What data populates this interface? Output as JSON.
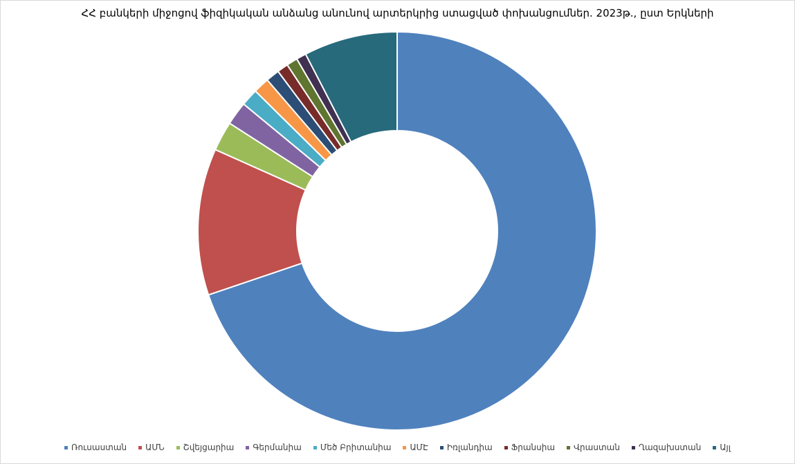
{
  "chart_data": {
    "type": "pie",
    "donut": true,
    "title": "ՀՀ բանկերի միջոցով ֆիզիկական անձանց անունով արտերկրից ստացված փոխանցումներ. 2023թ., ըստ Երկների",
    "legend_position": "bottom",
    "slices": [
      {
        "label": "Ռուսաստան",
        "value": 69.8,
        "color": "#4f81bd"
      },
      {
        "label": "ԱՄՆ",
        "value": 11.9,
        "color": "#c0504d"
      },
      {
        "label": "Շվեյցարիա",
        "value": 2.4,
        "color": "#9bbb59"
      },
      {
        "label": "Գերմանիա",
        "value": 1.9,
        "color": "#8064a2"
      },
      {
        "label": "Մեծ Բրիտանիա",
        "value": 1.4,
        "color": "#4bacc6"
      },
      {
        "label": "ԱՄԷ",
        "value": 1.3,
        "color": "#f79646"
      },
      {
        "label": "Իռլանդիա",
        "value": 1.1,
        "color": "#2c4d75"
      },
      {
        "label": "Ֆրանսիա",
        "value": 0.9,
        "color": "#772c2a"
      },
      {
        "label": "Վրաստան",
        "value": 0.9,
        "color": "#5f7530"
      },
      {
        "label": "Ղազախստան",
        "value": 0.8,
        "color": "#403152"
      },
      {
        "label": "Այլ",
        "value": 7.6,
        "color": "#276a7c"
      }
    ]
  }
}
